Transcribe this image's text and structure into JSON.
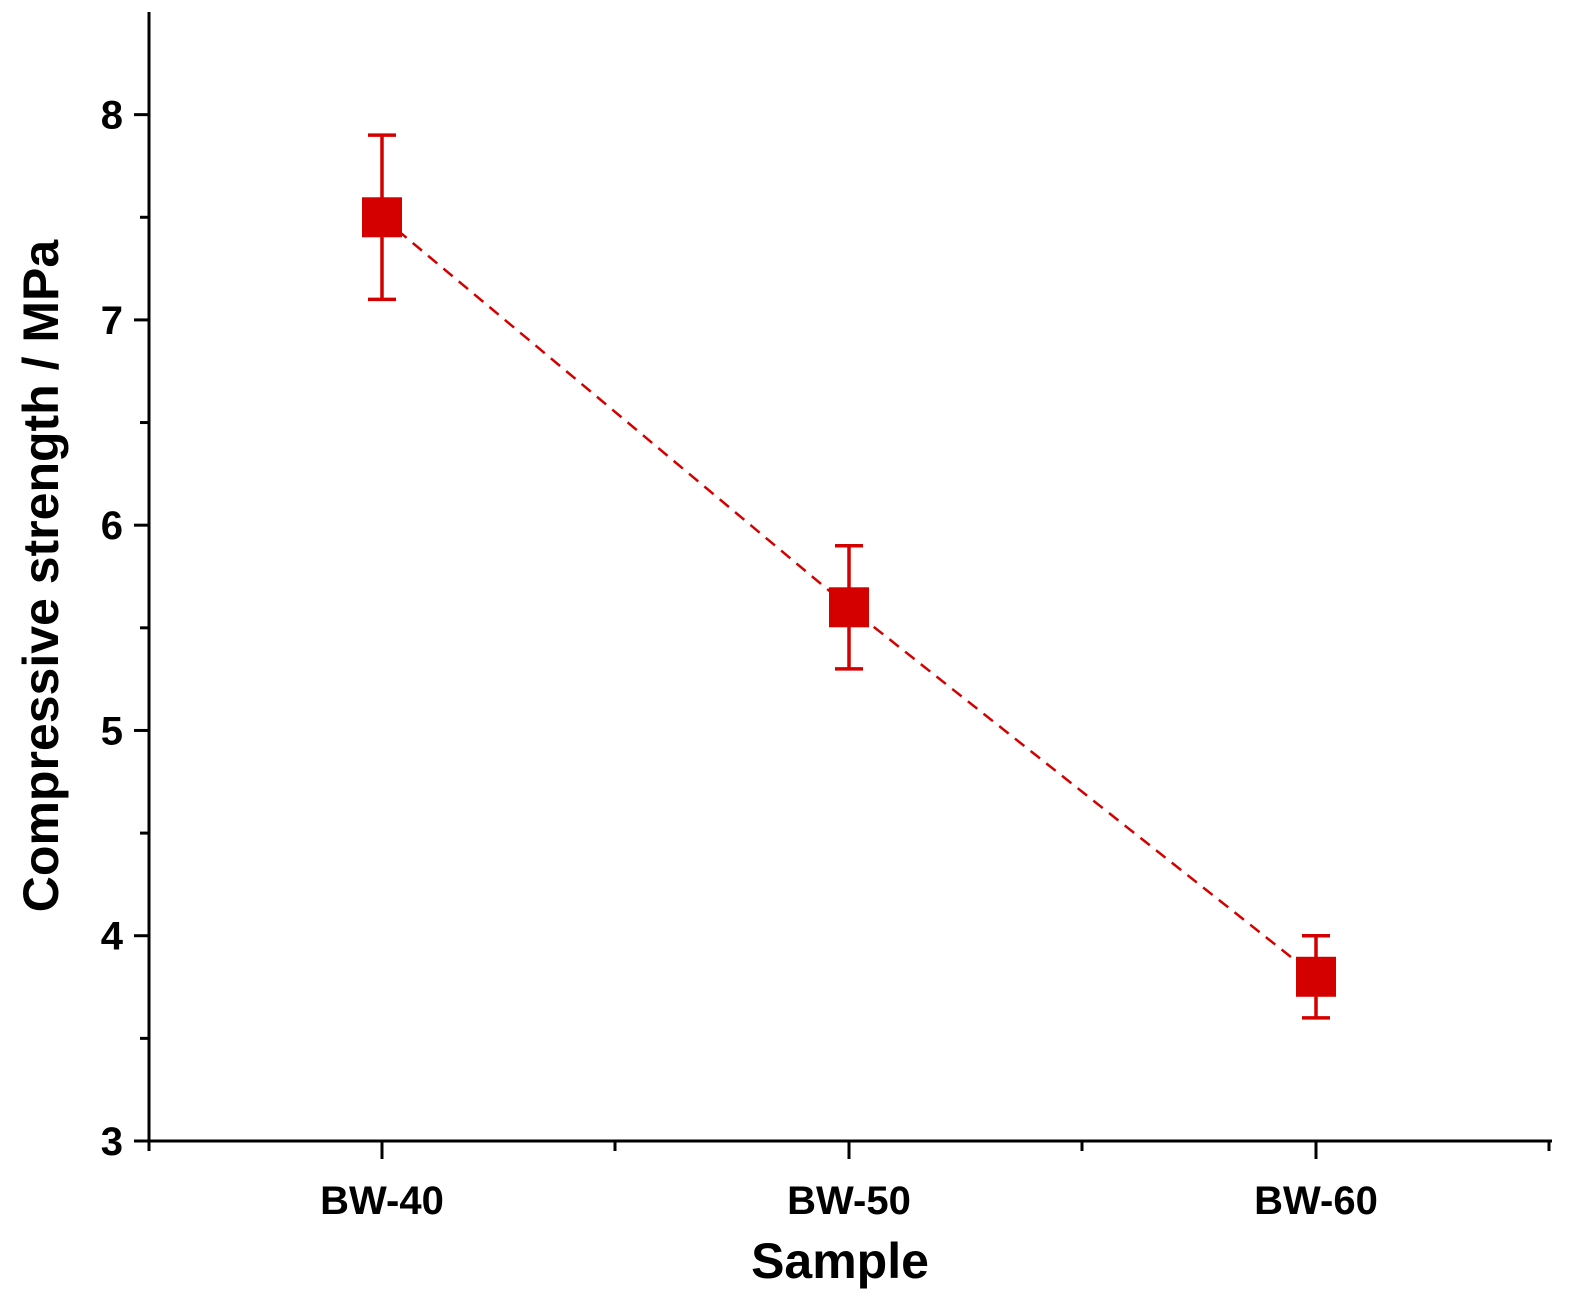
{
  "chart_data": {
    "type": "scatter",
    "xlabel": "Sample",
    "ylabel": "Compressive strength / MPa",
    "categories": [
      "BW-40",
      "BW-50",
      "BW-60"
    ],
    "series": [
      {
        "values": [
          7.5,
          5.6,
          3.8
        ],
        "error_low": [
          7.1,
          5.3,
          3.6
        ],
        "error_high": [
          7.9,
          5.9,
          4.0
        ]
      }
    ],
    "ylim": [
      3,
      8.5
    ],
    "yticks": [
      3,
      4,
      5,
      6,
      7,
      8
    ],
    "y_minor_ticks": [
      3.5,
      4.5,
      5.5,
      6.5,
      7.5
    ],
    "marker": "square",
    "line_style": "dashed",
    "color": "#d40000",
    "grid": false,
    "legend": "none"
  }
}
